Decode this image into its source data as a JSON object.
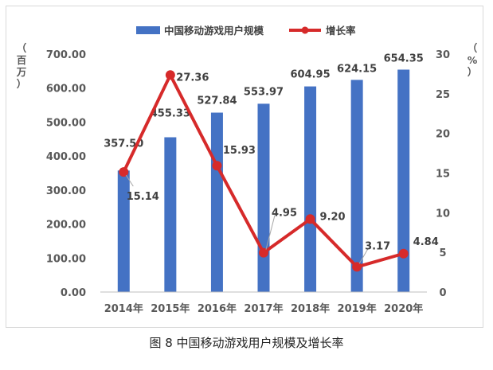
{
  "caption": "图 8  中国移动游戏用户规模及增长率",
  "colors": {
    "bar": "#4472c4",
    "line": "#d62a2a",
    "axis": "#bfbfbf",
    "text": "#595959",
    "label": "#404040"
  },
  "chart_data": {
    "type": "bar",
    "categories": [
      "2014年",
      "2015年",
      "2016年",
      "2017年",
      "2018年",
      "2019年",
      "2020年"
    ],
    "series": [
      {
        "name": "中国移动游戏用户规模",
        "type": "bar",
        "axis": "left",
        "values": [
          357.5,
          455.33,
          527.84,
          553.97,
          604.95,
          624.15,
          654.35
        ],
        "labels": [
          "357.50",
          "455.33",
          "527.84",
          "553.97",
          "604.95",
          "624.15",
          "654.35"
        ]
      },
      {
        "name": "增长率",
        "type": "line",
        "axis": "right",
        "values": [
          15.14,
          27.36,
          15.93,
          4.95,
          9.2,
          3.17,
          4.84
        ],
        "labels": [
          "15.14",
          "27.36",
          "15.93",
          "4.95",
          "9.20",
          "3.17",
          "4.84"
        ]
      }
    ],
    "left_axis": {
      "label": "（百万）",
      "ylim": [
        0,
        700
      ],
      "ticks": [
        "0.00",
        "100.00",
        "200.00",
        "300.00",
        "400.00",
        "500.00",
        "600.00",
        "700.00"
      ]
    },
    "right_axis": {
      "label": "（%）",
      "ylim": [
        0,
        30
      ],
      "ticks": [
        "0",
        "5",
        "10",
        "15",
        "20",
        "25",
        "30"
      ]
    },
    "legend": "top-center",
    "grid": false
  }
}
